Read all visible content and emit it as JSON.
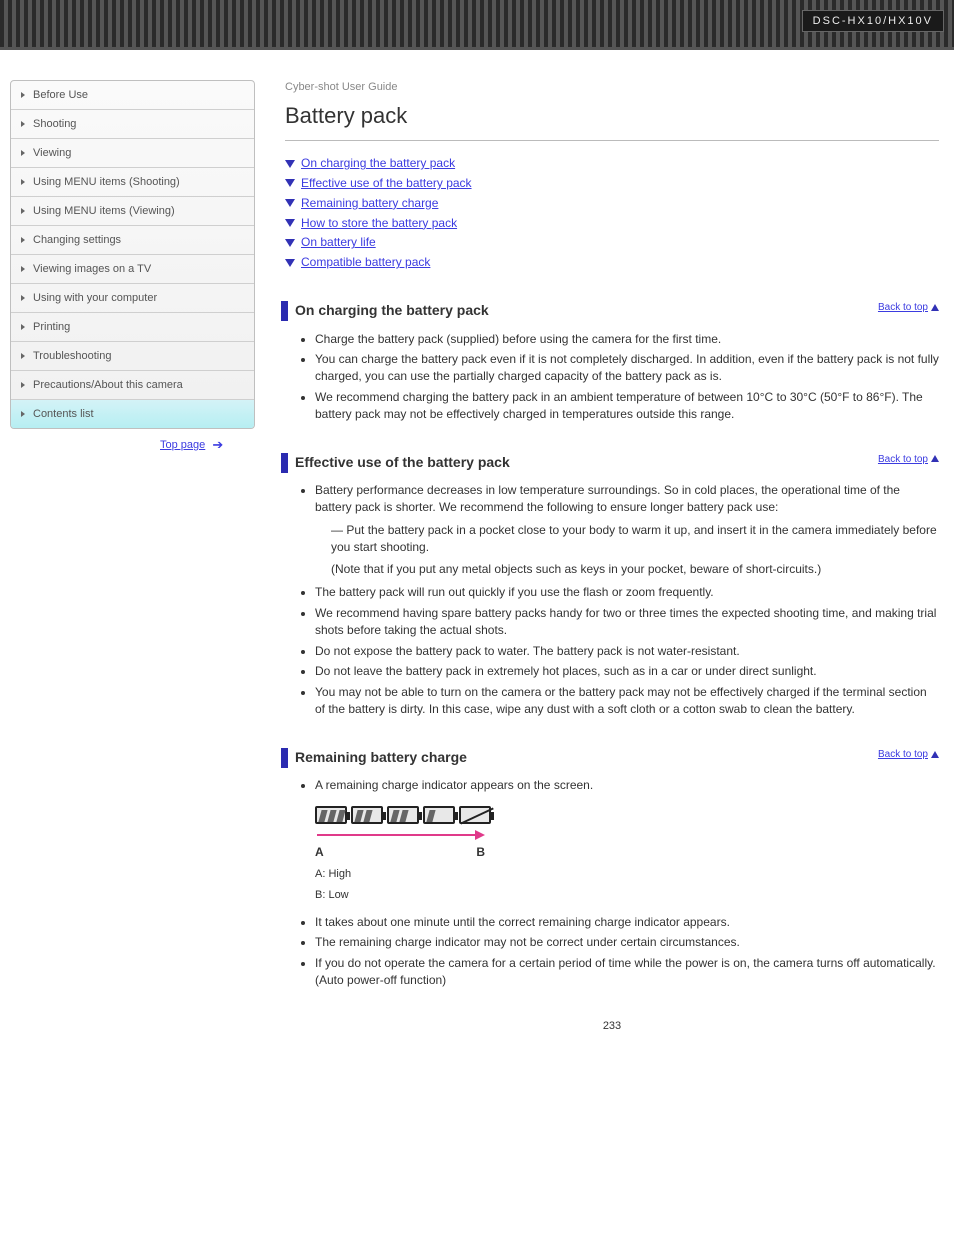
{
  "topbar": {
    "badge": "DSC-HX10/HX10V"
  },
  "sidebar": {
    "items": [
      {
        "label": "Before Use",
        "active": false
      },
      {
        "label": "Shooting",
        "active": false
      },
      {
        "label": "Viewing",
        "active": false
      },
      {
        "label": "Using MENU items (Shooting)",
        "active": false
      },
      {
        "label": "Using MENU items (Viewing)",
        "active": false
      },
      {
        "label": "Changing settings",
        "active": false
      },
      {
        "label": "Viewing images on a TV",
        "active": false
      },
      {
        "label": "Using with your computer",
        "active": false
      },
      {
        "label": "Printing",
        "active": false
      },
      {
        "label": "Troubleshooting",
        "active": false
      },
      {
        "label": "Precautions/About this camera",
        "active": false
      },
      {
        "label": "Contents list",
        "active": true
      }
    ]
  },
  "toplink": {
    "label": "Top page",
    "href": "#"
  },
  "content": {
    "breadcrumb": "Cyber-shot User Guide",
    "heading": "Battery pack",
    "toc": [
      {
        "label": "On charging the battery pack",
        "sub": ""
      },
      {
        "label": "Effective use of the battery pack",
        "sub": ""
      },
      {
        "label": "Remaining battery charge",
        "sub": ""
      },
      {
        "label": "How to store the battery pack",
        "sub": ""
      },
      {
        "label": "On battery life",
        "sub": ""
      },
      {
        "label": "Compatible battery pack",
        "sub": ""
      }
    ],
    "sections": [
      {
        "title": "On charging the battery pack",
        "bullets": [
          "Charge the battery pack (supplied) before using the camera for the first time.",
          "You can charge the battery pack even if it is not completely discharged. In addition, even if the battery pack is not fully charged, you can use the partially charged capacity of the battery pack as is.",
          "We recommend charging the battery pack in an ambient temperature of between 10°C to 30°C (50°F to 86°F). The battery pack may not be effectively charged in temperatures outside this range."
        ]
      },
      {
        "title": "Effective use of the battery pack",
        "bullets_before": [
          "Battery performance decreases in low temperature surroundings. So in cold places, the operational time of the battery pack is shorter. We recommend the following to ensure longer battery pack use:"
        ],
        "sublist": [
          "Put the battery pack in a pocket close to your body to warm it up, and insert it in the camera immediately before you start shooting."
        ],
        "note": "(Note that if you put any metal objects such as keys in your pocket, beware of short-circuits.)",
        "bullets_after": [
          "The battery pack will run out quickly if you use the flash or zoom frequently.",
          "We recommend having spare battery packs handy for two or three times the expected shooting time, and making trial shots before taking the actual shots.",
          "Do not expose the battery pack to water. The battery pack is not water-resistant.",
          "Do not leave the battery pack in extremely hot places, such as in a car or under direct sunlight.",
          "You may not be able to turn on the camera or the battery pack may not be effectively charged if the terminal section of the battery is dirty. In this case, wipe any dust with a soft cloth or a cotton swab to clean the battery."
        ]
      },
      {
        "title": "Remaining battery charge",
        "intro_bullet": "A remaining charge indicator appears on the screen.",
        "legend_a": "A: High",
        "legend_b": "B: Low",
        "bullets_after_img": [
          "It takes about one minute until the correct remaining charge indicator appears.",
          "The remaining charge indicator may not be correct under certain circumstances.",
          "If you do not operate the camera for a certain period of time while the power is on, the camera turns off automatically. (Auto power-off function)"
        ]
      }
    ],
    "top_label": "Back to top"
  },
  "page_number": "233",
  "battery_icons": {
    "count": 5,
    "segments_per_level": [
      3,
      2,
      2,
      1,
      0
    ],
    "seg_color": "#666666",
    "frame_color": "#222222",
    "arrow_color": "#e03a8a",
    "label_a": "A",
    "label_b": "B"
  },
  "colors": {
    "accent": "#2b2bb0",
    "link": "#3b3be0",
    "active_bg_top": "#d4f3f7",
    "active_bg_bottom": "#b6eef2"
  }
}
